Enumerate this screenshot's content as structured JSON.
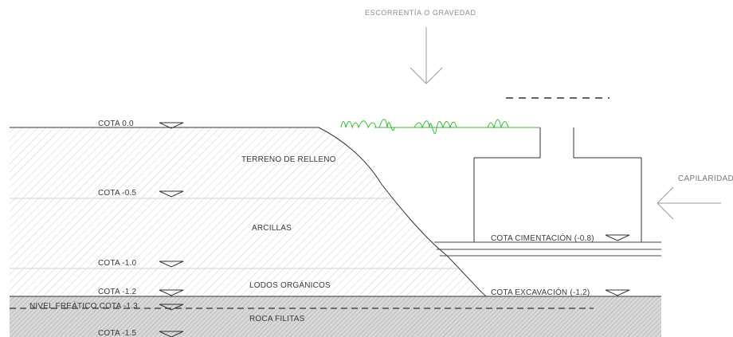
{
  "title_top": "ESCORRENTÍA O GRAVEDAD",
  "side_label": "CAPILARIDAD",
  "layers": [
    "TERRENO DE RELLENO",
    "ARCILLAS",
    "LODOS ORGÁNICOS",
    "ROCA FILITAS"
  ],
  "levels": [
    "COTA  0.0",
    "COTA  -0.5",
    "COTA  -1.0",
    "COTA  -1.2",
    "COTA  -1.5"
  ],
  "water_table": "NIVEL FREÁTICO COTA -1.3",
  "foundation": "COTA  CIMENTACIÓN (-0.8)",
  "excavation": "COTA  EXCAVACIÓN (-1.2)",
  "colors": {
    "line": "#333333",
    "green": "#33bb33",
    "hatch": "#bcbcbc",
    "rock": "#a8a8a8"
  }
}
